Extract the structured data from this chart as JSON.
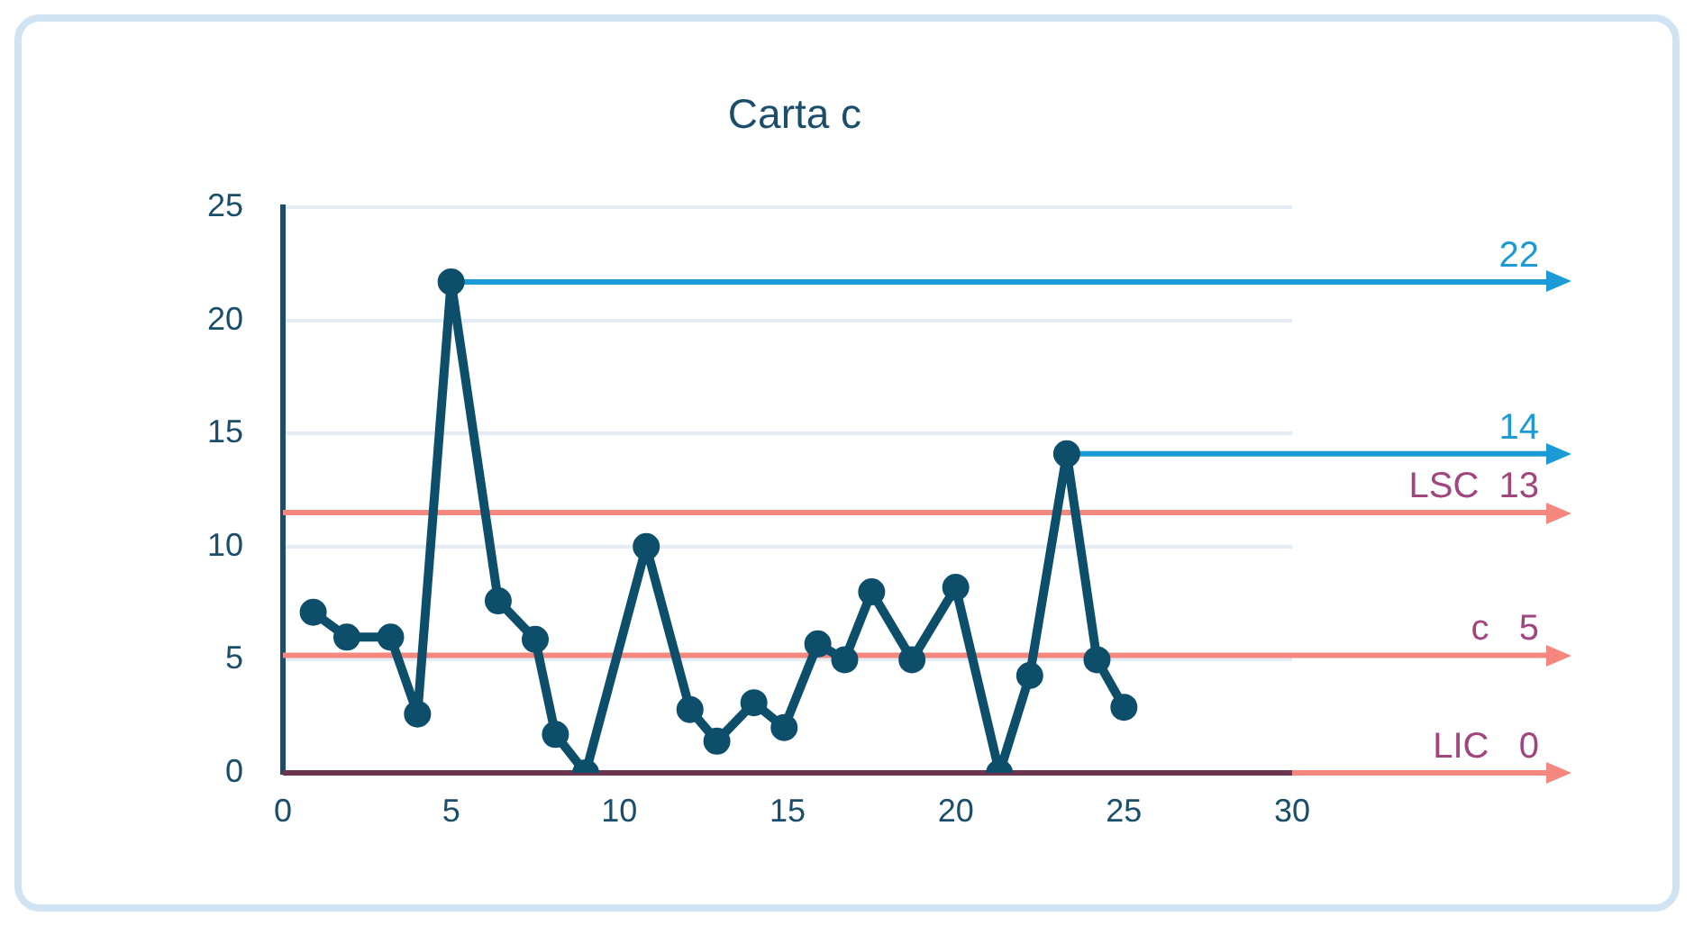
{
  "chart_data": {
    "type": "line",
    "title": "Carta c",
    "x": [
      0.9,
      1.9,
      3.2,
      4.0,
      5.0,
      6.4,
      7.5,
      8.1,
      9.0,
      10.8,
      12.1,
      12.9,
      14.0,
      14.9,
      15.9,
      16.7,
      17.5,
      18.7,
      20.0,
      21.3,
      22.2,
      23.3,
      24.2,
      25.0
    ],
    "series": [
      {
        "color": "#0d4f6b",
        "values": [
          7.1,
          6.0,
          6.0,
          2.6,
          21.7,
          7.6,
          5.9,
          1.7,
          0,
          10.0,
          2.8,
          1.4,
          3.1,
          2.0,
          5.7,
          5.0,
          8.0,
          5.0,
          8.2,
          0,
          4.3,
          14.1,
          5.0,
          2.9
        ]
      }
    ],
    "xlim": [
      0,
      30
    ],
    "xticks": [
      0,
      5,
      10,
      15,
      20,
      25,
      30
    ],
    "ylim": [
      0,
      25
    ],
    "yticks": [
      0,
      5,
      10,
      15,
      20,
      25
    ],
    "grid": "y",
    "marker": "circle",
    "line_style": "solid",
    "ref_lines": [
      {
        "axis": "y",
        "value": 11.5,
        "label": "LSC  13",
        "color": "#f4877e"
      },
      {
        "axis": "y",
        "value": 5.2,
        "label": "c   5",
        "color": "#f4877e"
      },
      {
        "axis": "y",
        "value": 0,
        "label": "LIC   0",
        "color": "#f4877e"
      }
    ],
    "annotations": [
      {
        "text": "22",
        "x": 5.0,
        "y": 21.7
      },
      {
        "text": "14",
        "x": 23.3,
        "y": 14.1
      }
    ]
  }
}
